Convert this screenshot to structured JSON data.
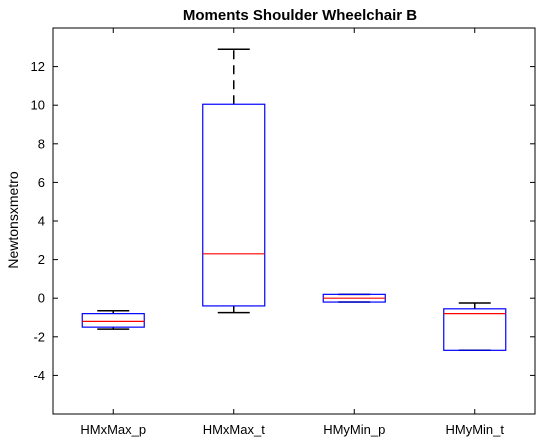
{
  "chart_data": {
    "type": "box",
    "title": "Moments Shoulder Wheelchair B",
    "xlabel": "",
    "ylabel": "Newtonsxmetro",
    "ylim": [
      -6,
      14
    ],
    "yticks": [
      -4,
      -2,
      0,
      2,
      4,
      6,
      8,
      10,
      12
    ],
    "grid": false,
    "categories": [
      "HMxMax_p",
      "HMxMax_t",
      "HMyMin_p",
      "HMyMin_t"
    ],
    "boxes": [
      {
        "category": "HMxMax_p",
        "whisker_low": -1.6,
        "q1": -1.5,
        "median": -1.2,
        "q3": -0.8,
        "whisker_high": -0.65
      },
      {
        "category": "HMxMax_t",
        "whisker_low": -0.75,
        "q1": -0.4,
        "median": 2.3,
        "q3": 10.05,
        "whisker_high": 12.9
      },
      {
        "category": "HMyMin_p",
        "whisker_low": -0.2,
        "q1": -0.2,
        "median": 0.0,
        "q3": 0.2,
        "whisker_high": 0.2
      },
      {
        "category": "HMyMin_t",
        "whisker_low": -2.7,
        "q1": -2.7,
        "median": -0.8,
        "q3": -0.55,
        "whisker_high": -0.25
      }
    ],
    "colors": {
      "box": "#0000ff",
      "median": "#ff0000",
      "whisker": "#000000",
      "axes": "#000000"
    }
  }
}
